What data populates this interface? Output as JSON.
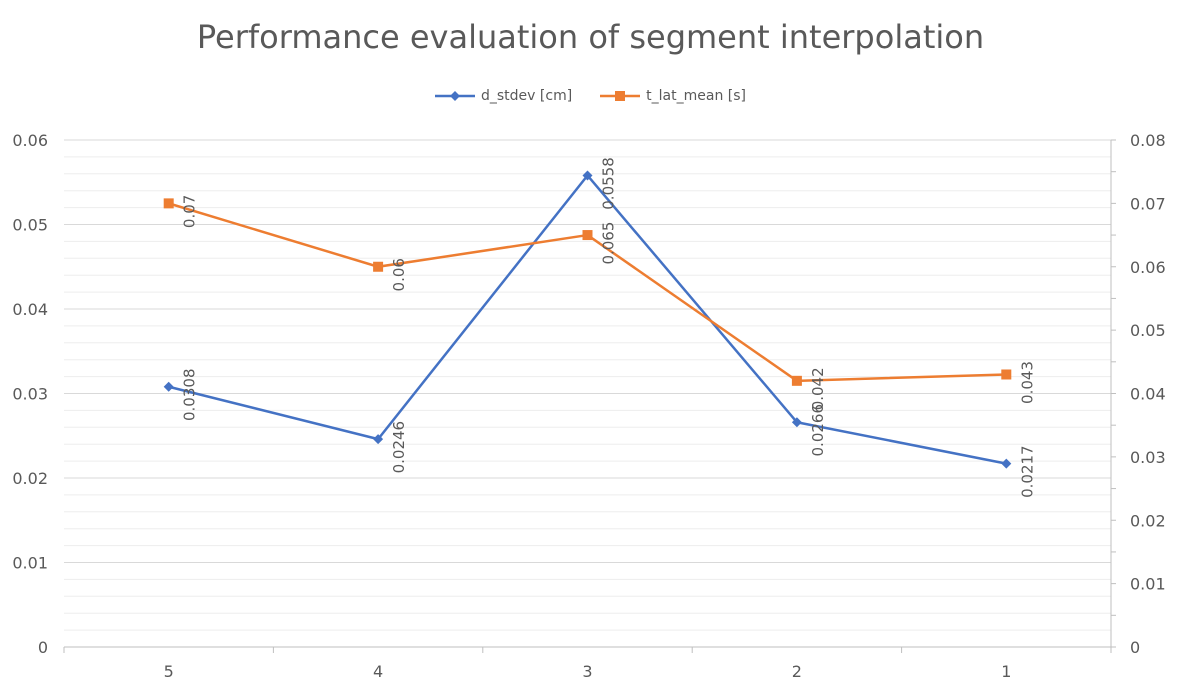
{
  "chart_data": {
    "type": "line",
    "title": "Performance evaluation of segment interpolation",
    "categories": [
      "5",
      "4",
      "3",
      "2",
      "1"
    ],
    "series": [
      {
        "name": "d_stdev [cm]",
        "axis": "left",
        "color": "#4472C4",
        "marker": "diamond",
        "values": [
          0.0308,
          0.0246,
          0.0558,
          0.0266,
          0.0217
        ],
        "labels": [
          "0.0308",
          "0.0246",
          "0.0558",
          "0.0266",
          "0.0217"
        ]
      },
      {
        "name": "t_lat_mean [s]",
        "axis": "right",
        "color": "#ED7D31",
        "marker": "square",
        "values": [
          0.07,
          0.06,
          0.065,
          0.042,
          0.043
        ],
        "labels": [
          "0.07",
          "0.06",
          "0.065",
          "0.042",
          "0.043"
        ]
      }
    ],
    "y_left": {
      "ylim": [
        0,
        0.06
      ],
      "ticks": [
        "0",
        "0.01",
        "0.02",
        "0.03",
        "0.04",
        "0.05",
        "0.06"
      ]
    },
    "y_right": {
      "ylim": [
        0,
        0.08
      ],
      "ticks": [
        "0",
        "0.01",
        "0.02",
        "0.03",
        "0.04",
        "0.05",
        "0.06",
        "0.07",
        "0.08"
      ]
    },
    "grid": true,
    "legend_position": "top"
  }
}
